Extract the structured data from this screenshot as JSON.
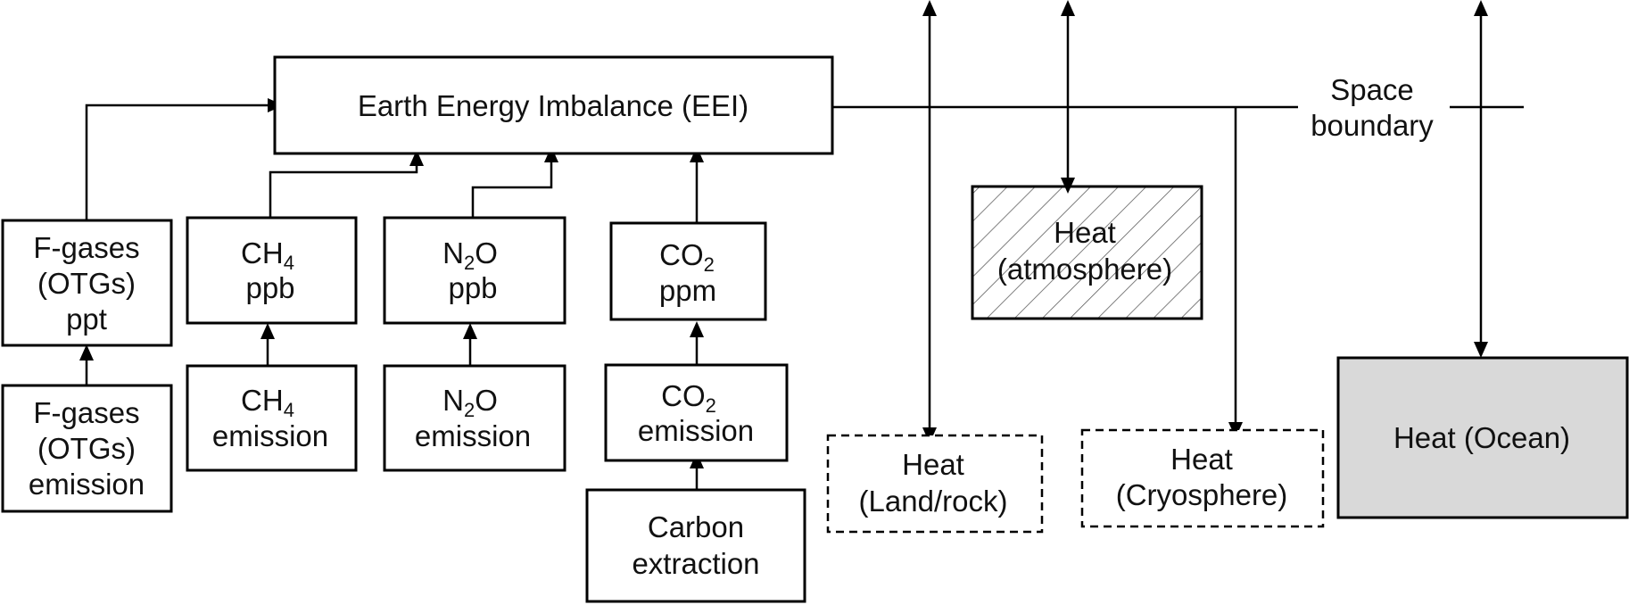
{
  "eei": {
    "label": "Earth Energy Imbalance (EEI)"
  },
  "fgases_conc": {
    "line1": "F-gases",
    "line2": "(OTGs)",
    "line3": "ppt"
  },
  "fgases_emis": {
    "line1": "F-gases",
    "line2": "(OTGs)",
    "line3": "emission"
  },
  "ch4_conc": {
    "base": "CH",
    "sub": "4",
    "unit": "ppb"
  },
  "ch4_emis": {
    "base": "CH",
    "sub": "4",
    "label": "emission"
  },
  "n2o_conc": {
    "pre": "N",
    "sub": "2",
    "post": "O",
    "unit": "ppb"
  },
  "n2o_emis": {
    "pre": "N",
    "sub": "2",
    "post": "O",
    "label": "emission"
  },
  "co2_conc": {
    "base": "CO",
    "sub": "2",
    "unit": "ppm"
  },
  "co2_emis": {
    "base": "CO",
    "sub": "2",
    "label": "emission"
  },
  "carbon_extraction": {
    "line1": "Carbon",
    "line2": "extraction"
  },
  "space_boundary": {
    "line1": "Space",
    "line2": "boundary"
  },
  "heat_atmosphere": {
    "line1": "Heat",
    "line2": "(atmosphere)"
  },
  "heat_land": {
    "line1": "Heat",
    "line2": "(Land/rock)"
  },
  "heat_cryosphere": {
    "line1": "Heat",
    "line2": "(Cryosphere)"
  },
  "heat_ocean": {
    "label": "Heat (Ocean)"
  },
  "colors": {
    "ocean_fill": "#d9d9d9",
    "stroke": "#000000",
    "hatch": "#555555"
  }
}
